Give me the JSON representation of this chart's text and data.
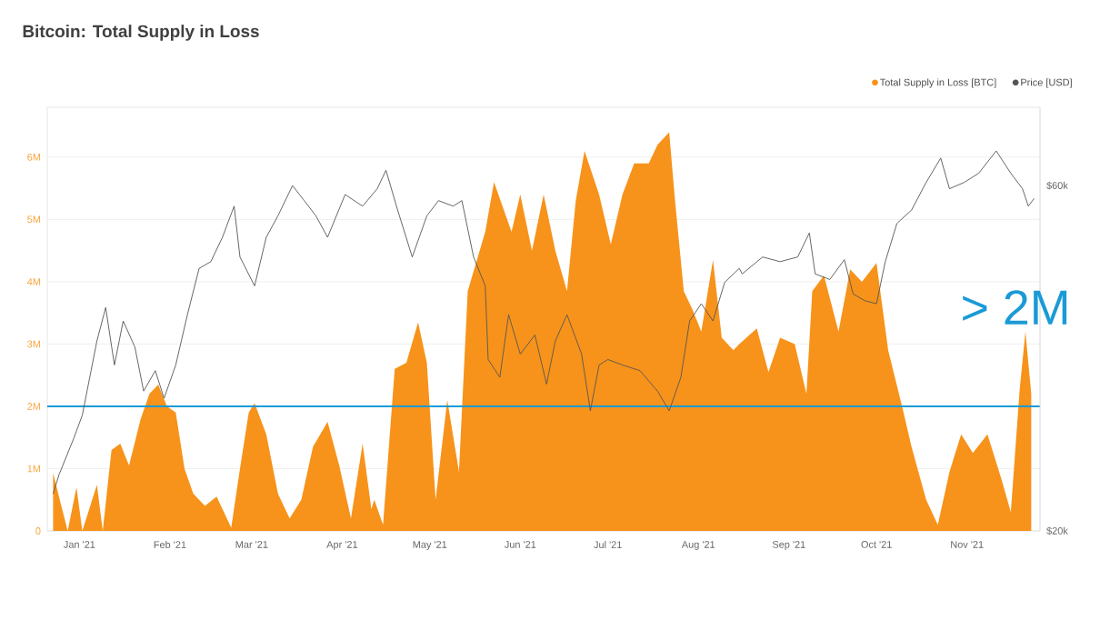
{
  "chart_data": {
    "type": "area",
    "title": "Bitcoin: Total Supply in Loss",
    "xlim": [
      "2020-12-21",
      "2021-11-26"
    ],
    "xticks": [
      {
        "value": "2021-01-01",
        "label": "Jan '21"
      },
      {
        "value": "2021-02-01",
        "label": "Feb '21"
      },
      {
        "value": "2021-03-01",
        "label": "Mar '21"
      },
      {
        "value": "2021-04-01",
        "label": "Apr '21"
      },
      {
        "value": "2021-05-01",
        "label": "May '21"
      },
      {
        "value": "2021-06-01",
        "label": "Jun '21"
      },
      {
        "value": "2021-07-01",
        "label": "Jul '21"
      },
      {
        "value": "2021-08-01",
        "label": "Aug '21"
      },
      {
        "value": "2021-09-01",
        "label": "Sep '21"
      },
      {
        "value": "2021-10-01",
        "label": "Oct '21"
      },
      {
        "value": "2021-11-01",
        "label": "Nov '21"
      }
    ],
    "ylim": [
      0,
      6800000
    ],
    "yticks": [
      {
        "value": 0,
        "label": "0"
      },
      {
        "value": 1000000,
        "label": "1M"
      },
      {
        "value": 2000000,
        "label": "2M"
      },
      {
        "value": 3000000,
        "label": "3M"
      },
      {
        "value": 4000000,
        "label": "4M"
      },
      {
        "value": 5000000,
        "label": "5M"
      },
      {
        "value": 6000000,
        "label": "6M"
      }
    ],
    "y2lim": [
      20000,
      77000
    ],
    "y2ticks": [
      {
        "value": 20000,
        "label": "$20k"
      },
      {
        "value": 60000,
        "label": "$60k"
      }
    ],
    "log": "y2",
    "grid": "y",
    "legend": "top right",
    "ref_lines": [
      {
        "axis": "y",
        "value": 2000000,
        "color": "#1a9ad6"
      }
    ],
    "annotations": [
      "> 2M"
    ],
    "series": [
      {
        "name": "Total Supply in Loss [BTC]",
        "color": "#f7931a",
        "x": [
          "2020-12-23",
          "2020-12-25",
          "2020-12-28",
          "2020-12-31",
          "2021-01-02",
          "2021-01-07",
          "2021-01-09",
          "2021-01-12",
          "2021-01-15",
          "2021-01-18",
          "2021-01-22",
          "2021-01-25",
          "2021-01-28",
          "2021-01-31",
          "2021-02-03",
          "2021-02-06",
          "2021-02-09",
          "2021-02-13",
          "2021-02-17",
          "2021-02-22",
          "2021-02-25",
          "2021-02-28",
          "2021-03-02",
          "2021-03-06",
          "2021-03-10",
          "2021-03-14",
          "2021-03-18",
          "2021-03-22",
          "2021-03-27",
          "2021-03-31",
          "2021-04-04",
          "2021-04-08",
          "2021-04-11",
          "2021-04-12",
          "2021-04-15",
          "2021-04-19",
          "2021-04-23",
          "2021-04-27",
          "2021-04-30",
          "2021-05-03",
          "2021-05-07",
          "2021-05-11",
          "2021-05-14",
          "2021-05-20",
          "2021-05-23",
          "2021-05-29",
          "2021-06-01",
          "2021-06-05",
          "2021-06-09",
          "2021-06-13",
          "2021-06-17",
          "2021-06-20",
          "2021-06-23",
          "2021-06-28",
          "2021-07-02",
          "2021-07-06",
          "2021-07-10",
          "2021-07-15",
          "2021-07-18",
          "2021-07-22",
          "2021-07-24",
          "2021-07-27",
          "2021-07-30",
          "2021-08-02",
          "2021-08-06",
          "2021-08-09",
          "2021-08-13",
          "2021-08-15",
          "2021-08-21",
          "2021-08-25",
          "2021-08-29",
          "2021-09-03",
          "2021-09-07",
          "2021-09-09",
          "2021-09-13",
          "2021-09-18",
          "2021-09-22",
          "2021-09-26",
          "2021-10-01",
          "2021-10-05",
          "2021-10-10",
          "2021-10-13",
          "2021-10-18",
          "2021-10-22",
          "2021-10-26",
          "2021-10-30",
          "2021-11-03",
          "2021-11-08",
          "2021-11-13",
          "2021-11-16",
          "2021-11-19",
          "2021-11-21",
          "2021-11-23"
        ],
        "values": [
          930000,
          550000,
          0,
          700000,
          0,
          740000,
          0,
          1300000,
          1400000,
          1050000,
          1800000,
          2200000,
          2350000,
          2000000,
          1900000,
          1000000,
          600000,
          400000,
          550000,
          50000,
          1000000,
          1900000,
          2050000,
          1550000,
          600000,
          200000,
          500000,
          1350000,
          1750000,
          1050000,
          200000,
          1400000,
          350000,
          500000,
          100000,
          2600000,
          2700000,
          3350000,
          2700000,
          500000,
          2100000,
          950000,
          3850000,
          4800000,
          5600000,
          4800000,
          5400000,
          4500000,
          5400000,
          4500000,
          3850000,
          5300000,
          6100000,
          5400000,
          4600000,
          5400000,
          5900000,
          5900000,
          6200000,
          6400000,
          5300000,
          3850000,
          3550000,
          3200000,
          4350000,
          3100000,
          2900000,
          3000000,
          3250000,
          2550000,
          3100000,
          3000000,
          2200000,
          3850000,
          4100000,
          3200000,
          4200000,
          4000000,
          4300000,
          2900000,
          1950000,
          1350000,
          500000,
          100000,
          950000,
          1550000,
          1250000,
          1550000,
          800000,
          300000,
          2250000,
          3200000,
          2200000
        ]
      },
      {
        "name": "Price [USD]",
        "type": "line",
        "axis": "y2",
        "color": "#555555",
        "x": [
          "2020-12-23",
          "2020-12-25",
          "2020-12-30",
          "2021-01-02",
          "2021-01-05",
          "2021-01-07",
          "2021-01-10",
          "2021-01-13",
          "2021-01-16",
          "2021-01-20",
          "2021-01-23",
          "2021-01-27",
          "2021-01-30",
          "2021-02-03",
          "2021-02-07",
          "2021-02-11",
          "2021-02-15",
          "2021-02-19",
          "2021-02-23",
          "2021-02-25",
          "2021-03-02",
          "2021-03-06",
          "2021-03-10",
          "2021-03-15",
          "2021-03-19",
          "2021-03-23",
          "2021-03-27",
          "2021-04-02",
          "2021-04-08",
          "2021-04-13",
          "2021-04-16",
          "2021-04-20",
          "2021-04-25",
          "2021-04-30",
          "2021-05-04",
          "2021-05-09",
          "2021-05-12",
          "2021-05-16",
          "2021-05-20",
          "2021-05-21",
          "2021-05-25",
          "2021-05-28",
          "2021-06-01",
          "2021-06-06",
          "2021-06-10",
          "2021-06-13",
          "2021-06-17",
          "2021-06-22",
          "2021-06-25",
          "2021-06-28",
          "2021-07-01",
          "2021-07-06",
          "2021-07-12",
          "2021-07-18",
          "2021-07-22",
          "2021-07-26",
          "2021-07-29",
          "2021-08-02",
          "2021-08-06",
          "2021-08-10",
          "2021-08-15",
          "2021-08-16",
          "2021-08-23",
          "2021-08-29",
          "2021-09-04",
          "2021-09-08",
          "2021-09-10",
          "2021-09-15",
          "2021-09-20",
          "2021-09-23",
          "2021-09-27",
          "2021-10-01",
          "2021-10-04",
          "2021-10-08",
          "2021-10-13",
          "2021-10-18",
          "2021-10-23",
          "2021-10-26",
          "2021-10-31",
          "2021-11-05",
          "2021-11-11",
          "2021-11-16",
          "2021-11-20",
          "2021-11-22",
          "2021-11-24"
        ],
        "values": [
          22500,
          23900,
          26800,
          28900,
          33300,
          36600,
          40700,
          33900,
          39000,
          35900,
          31200,
          33300,
          30500,
          33900,
          39800,
          46100,
          47100,
          50900,
          56200,
          47800,
          43600,
          50900,
          54500,
          60000,
          57200,
          54500,
          50900,
          58300,
          56200,
          59400,
          63000,
          55500,
          47800,
          54500,
          57200,
          56200,
          57200,
          47800,
          43600,
          34500,
          32600,
          39800,
          35100,
          37300,
          31900,
          36600,
          39800,
          35100,
          29300,
          33900,
          34500,
          33900,
          33300,
          31200,
          29300,
          32600,
          39000,
          41200,
          39000,
          44100,
          46100,
          45300,
          47800,
          47100,
          47800,
          51600,
          45300,
          44500,
          47400,
          42500,
          41600,
          41200,
          47100,
          53200,
          55500,
          60600,
          65500,
          59400,
          60600,
          62400,
          67000,
          62400,
          59400,
          56200,
          57600
        ]
      }
    ]
  }
}
